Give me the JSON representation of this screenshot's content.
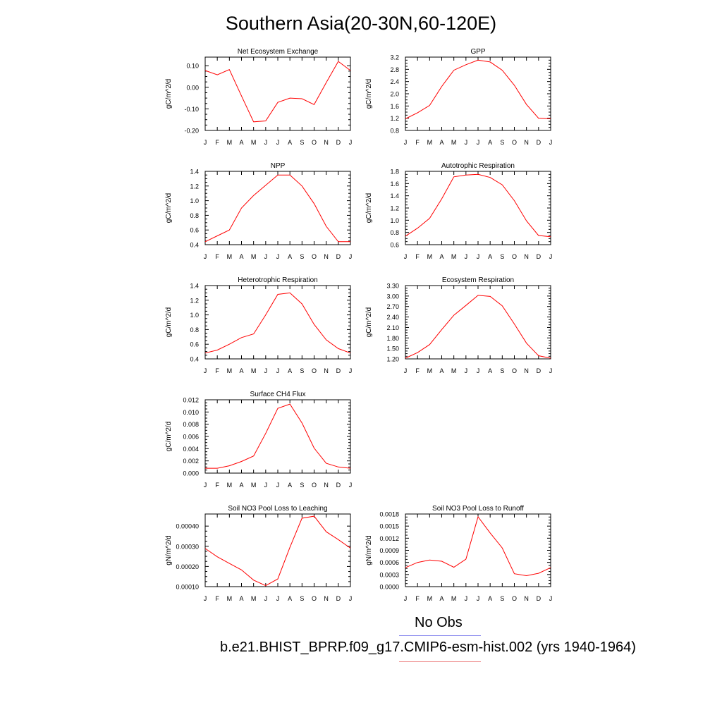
{
  "title": "Southern Asia(20-30N,60-120E)",
  "months": [
    "J",
    "F",
    "M",
    "A",
    "M",
    "J",
    "J",
    "A",
    "S",
    "O",
    "N",
    "D",
    "J"
  ],
  "line_color": "#ff0000",
  "legend": {
    "obs_label": "No Obs",
    "obs_color": "#8888ee",
    "case_label": "b.e21.BHIST_BPRP.f09_g17.CMIP6-esm-hist.002 (yrs 1940-1964)",
    "case_color": "#ee8888"
  },
  "chart_data": [
    {
      "type": "line",
      "title": "Net Ecosystem Exchange",
      "ylabel": "gC/m^2/d",
      "x": [
        "J",
        "F",
        "M",
        "A",
        "M",
        "J",
        "J",
        "A",
        "S",
        "O",
        "N",
        "D",
        "J"
      ],
      "values": [
        0.078,
        0.058,
        0.082,
        -0.04,
        -0.16,
        -0.156,
        -0.07,
        -0.05,
        -0.053,
        -0.08,
        0.022,
        0.12,
        0.078
      ],
      "ylim": [
        -0.2,
        0.14
      ],
      "yticks": [
        "0.10",
        "0.00",
        "-0.10",
        "-0.20"
      ],
      "ytick_values": [
        0.1,
        0.0,
        -0.1,
        -0.2
      ]
    },
    {
      "type": "line",
      "title": "GPP",
      "ylabel": "gC/m^2/d",
      "x": [
        "J",
        "F",
        "M",
        "A",
        "M",
        "J",
        "J",
        "A",
        "S",
        "O",
        "N",
        "D",
        "J"
      ],
      "values": [
        1.18,
        1.38,
        1.62,
        2.24,
        2.77,
        2.95,
        3.1,
        3.04,
        2.77,
        2.28,
        1.65,
        1.2,
        1.18
      ],
      "ylim": [
        0.8,
        3.2
      ],
      "yticks": [
        "3.2",
        "2.8",
        "2.4",
        "2.0",
        "1.6",
        "1.2",
        "0.8"
      ],
      "ytick_values": [
        3.2,
        2.8,
        2.4,
        2.0,
        1.6,
        1.2,
        0.8
      ]
    },
    {
      "type": "line",
      "title": "NPP",
      "ylabel": "gC/m^2/d",
      "x": [
        "J",
        "F",
        "M",
        "A",
        "M",
        "J",
        "J",
        "A",
        "S",
        "O",
        "N",
        "D",
        "J"
      ],
      "values": [
        0.44,
        0.52,
        0.6,
        0.9,
        1.07,
        1.21,
        1.35,
        1.35,
        1.2,
        0.96,
        0.65,
        0.44,
        0.44
      ],
      "ylim": [
        0.4,
        1.4
      ],
      "yticks": [
        "1.4",
        "1.2",
        "1.0",
        "0.8",
        "0.6",
        "0.4"
      ],
      "ytick_values": [
        1.4,
        1.2,
        1.0,
        0.8,
        0.6,
        0.4
      ]
    },
    {
      "type": "line",
      "title": "Autotrophic Respiration",
      "ylabel": "gC/m^2/d",
      "x": [
        "J",
        "F",
        "M",
        "A",
        "M",
        "J",
        "J",
        "A",
        "S",
        "O",
        "N",
        "D",
        "J"
      ],
      "values": [
        0.74,
        0.87,
        1.03,
        1.35,
        1.71,
        1.74,
        1.75,
        1.7,
        1.58,
        1.32,
        0.99,
        0.75,
        0.73
      ],
      "ylim": [
        0.6,
        1.8
      ],
      "yticks": [
        "1.8",
        "1.6",
        "1.4",
        "1.2",
        "1.0",
        "0.8",
        "0.6"
      ],
      "ytick_values": [
        1.8,
        1.6,
        1.4,
        1.2,
        1.0,
        0.8,
        0.6
      ]
    },
    {
      "type": "line",
      "title": "Heterotrophic Respiration",
      "ylabel": "gC/m^2/d",
      "x": [
        "J",
        "F",
        "M",
        "A",
        "M",
        "J",
        "J",
        "A",
        "S",
        "O",
        "N",
        "D",
        "J"
      ],
      "values": [
        0.48,
        0.52,
        0.6,
        0.69,
        0.74,
        1.0,
        1.28,
        1.3,
        1.15,
        0.87,
        0.66,
        0.54,
        0.48
      ],
      "ylim": [
        0.4,
        1.4
      ],
      "yticks": [
        "1.4",
        "1.2",
        "1.0",
        "0.8",
        "0.6",
        "0.4"
      ],
      "ytick_values": [
        1.4,
        1.2,
        1.0,
        0.8,
        0.6,
        0.4
      ]
    },
    {
      "type": "line",
      "title": "Ecosystem Respiration",
      "ylabel": "gC/m^2/d",
      "x": [
        "J",
        "F",
        "M",
        "A",
        "M",
        "J",
        "J",
        "A",
        "S",
        "O",
        "N",
        "D",
        "J"
      ],
      "values": [
        1.22,
        1.38,
        1.61,
        2.04,
        2.45,
        2.73,
        3.02,
        2.99,
        2.72,
        2.2,
        1.65,
        1.29,
        1.22
      ],
      "ylim": [
        1.2,
        3.3
      ],
      "yticks": [
        "3.30",
        "3.00",
        "2.70",
        "2.40",
        "2.10",
        "1.80",
        "1.50",
        "1.20"
      ],
      "ytick_values": [
        3.3,
        3.0,
        2.7,
        2.4,
        2.1,
        1.8,
        1.5,
        1.2
      ]
    },
    {
      "type": "line",
      "title": "Surface CH4 Flux",
      "ylabel": "gC/m^2/d",
      "x": [
        "J",
        "F",
        "M",
        "A",
        "M",
        "J",
        "J",
        "A",
        "S",
        "O",
        "N",
        "D",
        "J"
      ],
      "values": [
        0.0008,
        0.0008,
        0.0012,
        0.0019,
        0.0028,
        0.0065,
        0.0106,
        0.0113,
        0.0082,
        0.0041,
        0.0016,
        0.001,
        0.0008
      ],
      "ylim": [
        0.0,
        0.012
      ],
      "yticks": [
        "0.012",
        "0.010",
        "0.008",
        "0.006",
        "0.004",
        "0.002",
        "0.000"
      ],
      "ytick_values": [
        0.012,
        0.01,
        0.008,
        0.006,
        0.004,
        0.002,
        0.0
      ]
    },
    {
      "type": "line",
      "title": "Soil NO3 Pool Loss to Leaching",
      "ylabel": "gN/m^2/d",
      "x": [
        "J",
        "F",
        "M",
        "A",
        "M",
        "J",
        "J",
        "A",
        "S",
        "O",
        "N",
        "D",
        "J"
      ],
      "values": [
        0.000289,
        0.000248,
        0.000215,
        0.000183,
        0.000132,
        0.000105,
        0.000138,
        0.000295,
        0.000439,
        0.000449,
        0.000372,
        0.000333,
        0.000291
      ],
      "ylim": [
        0.0001,
        0.00046
      ],
      "yticks": [
        "0.00040",
        "0.00030",
        "0.00020",
        "0.00010"
      ],
      "ytick_values": [
        0.0004,
        0.0003,
        0.0002,
        0.0001
      ]
    },
    {
      "type": "line",
      "title": "Soil NO3 Pool Loss to Runoff",
      "ylabel": "gN/m^2/d",
      "x": [
        "J",
        "F",
        "M",
        "A",
        "M",
        "J",
        "J",
        "A",
        "S",
        "O",
        "N",
        "D",
        "J"
      ],
      "values": [
        0.00047,
        0.0006,
        0.00066,
        0.00063,
        0.00048,
        0.00068,
        0.00173,
        0.00133,
        0.00096,
        0.00032,
        0.00027,
        0.00033,
        0.00047
      ],
      "ylim": [
        0.0,
        0.0018
      ],
      "yticks": [
        "0.0018",
        "0.0015",
        "0.0012",
        "0.0009",
        "0.0006",
        "0.0003",
        "0.0000"
      ],
      "ytick_values": [
        0.0018,
        0.0015,
        0.0012,
        0.0009,
        0.0006,
        0.0003,
        0.0
      ]
    }
  ]
}
